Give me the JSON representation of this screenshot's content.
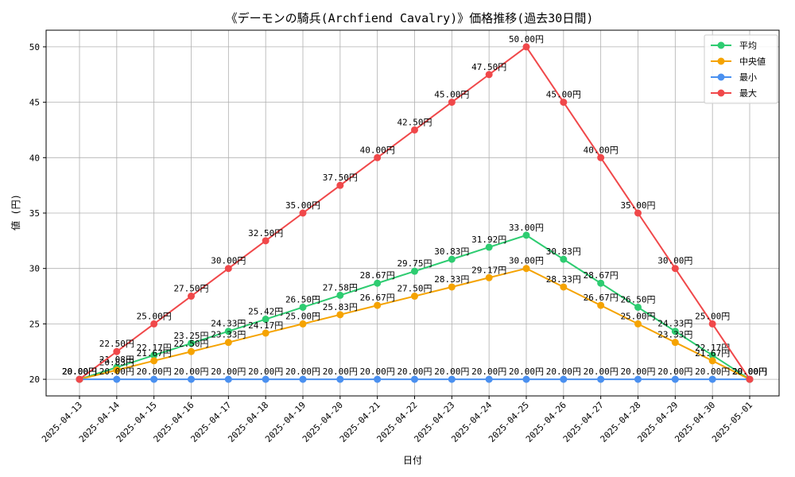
{
  "chart_data": {
    "type": "line",
    "title": "《デーモンの騎兵(Archfiend Cavalry)》価格推移(過去30日間)",
    "xlabel": "日付",
    "ylabel": "値 (円)",
    "unit": "円",
    "ylim": [
      18.5,
      51.5
    ],
    "yticks": [
      20,
      25,
      30,
      35,
      40,
      45,
      50
    ],
    "grid": true,
    "legend_position": "top-right",
    "categories": [
      "2025-04-13",
      "2025-04-14",
      "2025-04-15",
      "2025-04-16",
      "2025-04-17",
      "2025-04-18",
      "2025-04-19",
      "2025-04-20",
      "2025-04-21",
      "2025-04-22",
      "2025-04-23",
      "2025-04-24",
      "2025-04-25",
      "2025-04-26",
      "2025-04-27",
      "2025-04-28",
      "2025-04-29",
      "2025-04-30",
      "2025-05-01"
    ],
    "series": [
      {
        "name": "平均",
        "color": "#2ecc71",
        "values": [
          20.0,
          21.08,
          22.17,
          23.25,
          24.33,
          25.42,
          26.5,
          27.58,
          28.67,
          29.75,
          30.83,
          31.92,
          33.0,
          30.83,
          28.67,
          26.5,
          24.33,
          22.17,
          20.0
        ]
      },
      {
        "name": "中央値",
        "color": "#f5a300",
        "values": [
          20.0,
          20.83,
          21.67,
          22.5,
          23.33,
          24.17,
          25.0,
          25.83,
          26.67,
          27.5,
          28.33,
          29.17,
          30.0,
          28.33,
          26.67,
          25.0,
          23.33,
          21.67,
          20.0
        ]
      },
      {
        "name": "最小",
        "color": "#4a90f0",
        "values": [
          20.0,
          20.0,
          20.0,
          20.0,
          20.0,
          20.0,
          20.0,
          20.0,
          20.0,
          20.0,
          20.0,
          20.0,
          20.0,
          20.0,
          20.0,
          20.0,
          20.0,
          20.0,
          20.0
        ]
      },
      {
        "name": "最大",
        "color": "#f0484a",
        "values": [
          20.0,
          22.5,
          25.0,
          27.5,
          30.0,
          32.5,
          35.0,
          37.5,
          40.0,
          42.5,
          45.0,
          47.5,
          50.0,
          45.0,
          40.0,
          35.0,
          30.0,
          25.0,
          20.0
        ]
      }
    ]
  }
}
